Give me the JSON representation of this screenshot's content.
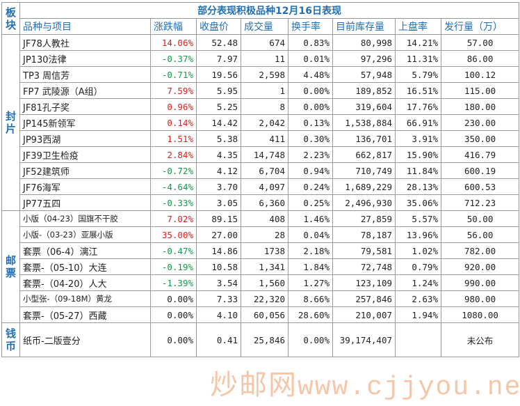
{
  "title": "部分表现积极品种12月16日表现",
  "header": {
    "board": "板块",
    "columns": [
      "品种与项目",
      "涨跌幅",
      "收盘价",
      "成交量",
      "换手率",
      "目前库存量",
      "上盘率",
      "发行量（万）"
    ]
  },
  "sections": [
    {
      "label": "封片",
      "rows": [
        [
          "JF78人教社",
          "14.06%",
          "52.48",
          "674",
          "0.83%",
          "80,998",
          "14.21%",
          "57.00"
        ],
        [
          "JP130法律",
          "-0.37%",
          "7.97",
          "11",
          "0.01%",
          "97,296",
          "11.31%",
          "86.00"
        ],
        [
          "TP3 周信芳",
          "-0.71%",
          "19.56",
          "2,598",
          "4.48%",
          "57,948",
          "5.79%",
          "100.12"
        ],
        [
          "FP7 武陵源（A组）",
          "7.59%",
          "5.95",
          "1",
          "0.00%",
          "189,852",
          "16.51%",
          "115.00"
        ],
        [
          "JF81孔子奖",
          "0.96%",
          "5.25",
          "8",
          "0.00%",
          "319,604",
          "17.76%",
          "180.00"
        ],
        [
          "JP145新领军",
          "0.14%",
          "14.42",
          "2,042",
          "0.13%",
          "1,538,884",
          "66.91%",
          "230.00"
        ],
        [
          "JP93西湖",
          "1.51%",
          "5.38",
          "411",
          "0.30%",
          "136,701",
          "3.91%",
          "350.00"
        ],
        [
          "JF39卫生检疫",
          "2.84%",
          "4.35",
          "14,748",
          "2.23%",
          "662,817",
          "15.90%",
          "416.79"
        ],
        [
          "JF52建筑师",
          "-0.72%",
          "4.12",
          "6,704",
          "0.94%",
          "710,749",
          "11.84%",
          "600.19"
        ],
        [
          "JF76海军",
          "-4.64%",
          "3.70",
          "4,097",
          "0.24%",
          "1,689,229",
          "28.13%",
          "600.53"
        ],
        [
          "JP77五四",
          "-0.33%",
          "3.05",
          "6,360",
          "0.25%",
          "2,496,930",
          "35.06%",
          "712.23"
        ]
      ]
    },
    {
      "label": "邮票",
      "rows": [
        [
          "小版（04-23）国旗不干胶",
          "7.02%",
          "89.15",
          "408",
          "1.46%",
          "27,859",
          "5.57%",
          "50.00"
        ],
        [
          "小版-（03-23）亚展小版",
          "35.00%",
          "27.00",
          "28",
          "0.04%",
          "78,187",
          "13.96%",
          "56.00"
        ],
        [
          "套票（06-4）漓江",
          "-0.47%",
          "14.86",
          "1738",
          "2.18%",
          "79,581",
          "1.02%",
          "782.00"
        ],
        [
          "套票-（05-10）大连",
          "-0.19%",
          "10.58",
          "1,341",
          "1.84%",
          "72,748",
          "0.79%",
          "920.00"
        ],
        [
          "套票-（04-20）人大",
          "-1.39%",
          "3.54",
          "1,560",
          "1.27%",
          "123,109",
          "1.24%",
          "990.00"
        ],
        [
          "小型张-（09-18M）黄龙",
          "0.00%",
          "7.33",
          "22,320",
          "8.66%",
          "257,846",
          "2.63%",
          "980.00"
        ],
        [
          "套票-（05-27）西藏",
          "0.00%",
          "4.10",
          "60,056",
          "28.60%",
          "210,007",
          "1.94%",
          "1080.00"
        ]
      ]
    },
    {
      "label": "钱币",
      "rows": [
        [
          "纸币-二版壹分",
          "0.00%",
          "0.41",
          "25,846",
          "0.00%",
          "39,174,407",
          "",
          "未公布"
        ]
      ]
    }
  ],
  "watermark": {
    "brand": "炒邮网",
    "url": "www.cjjyou.net"
  },
  "colors": {
    "header_blue": "#1f6fb8",
    "up_red": "#e0201b",
    "down_green": "#139a4a"
  }
}
